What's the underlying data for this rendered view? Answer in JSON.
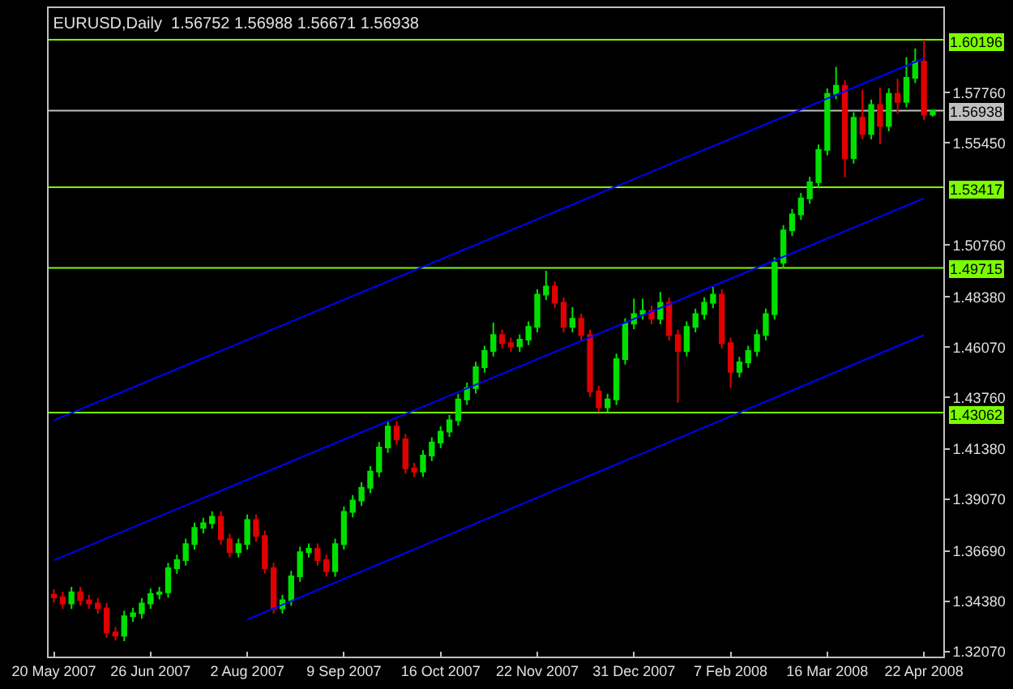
{
  "chart_data": {
    "type": "candlestick",
    "title": "EURUSD,Daily  1.56752 1.56988 1.56671 1.56938",
    "categories": [
      "20 May 2007",
      null,
      null,
      null,
      null,
      null,
      null,
      null,
      null,
      null,
      null,
      "26 Jun 2007",
      null,
      null,
      null,
      null,
      null,
      null,
      null,
      null,
      null,
      null,
      "2 Aug 2007",
      null,
      null,
      null,
      null,
      null,
      null,
      null,
      null,
      null,
      null,
      "9 Sep 2007",
      null,
      null,
      null,
      null,
      null,
      null,
      null,
      null,
      null,
      null,
      "16 Oct 2007",
      null,
      null,
      null,
      null,
      null,
      null,
      null,
      null,
      null,
      null,
      "22 Nov 2007",
      null,
      null,
      null,
      null,
      null,
      null,
      null,
      null,
      null,
      null,
      "31 Dec 2007",
      null,
      null,
      null,
      null,
      null,
      null,
      null,
      null,
      null,
      null,
      "7 Feb 2008",
      null,
      null,
      null,
      null,
      null,
      null,
      null,
      null,
      null,
      null,
      "16 Mar 2008",
      null,
      null,
      null,
      null,
      null,
      null,
      null,
      null,
      null,
      null,
      "22 Apr 2008",
      null
    ],
    "ohlc": [
      [
        1.347,
        1.3495,
        1.3433,
        1.3458
      ],
      [
        1.3458,
        1.3483,
        1.3404,
        1.3429
      ],
      [
        1.3429,
        1.3505,
        1.3404,
        1.348
      ],
      [
        1.348,
        1.3505,
        1.3419,
        1.3444
      ],
      [
        1.3444,
        1.3469,
        1.3404,
        1.3429
      ],
      [
        1.3429,
        1.3454,
        1.3382,
        1.3407
      ],
      [
        1.3407,
        1.3432,
        1.3271,
        1.3296
      ],
      [
        1.3296,
        1.3321,
        1.3259,
        1.3281
      ],
      [
        1.3281,
        1.3395,
        1.3256,
        1.337
      ],
      [
        1.337,
        1.3409,
        1.3345,
        1.3384
      ],
      [
        1.3384,
        1.3454,
        1.3359,
        1.3429
      ],
      [
        1.3429,
        1.3498,
        1.3404,
        1.3473
      ],
      [
        1.3473,
        1.3505,
        1.3448,
        1.348
      ],
      [
        1.348,
        1.3616,
        1.3455,
        1.3591
      ],
      [
        1.3591,
        1.3653,
        1.3566,
        1.3628
      ],
      [
        1.3628,
        1.3727,
        1.3603,
        1.3702
      ],
      [
        1.3702,
        1.3801,
        1.3677,
        1.3776
      ],
      [
        1.3776,
        1.3823,
        1.3751,
        1.3798
      ],
      [
        1.3798,
        1.3853,
        1.3773,
        1.3828
      ],
      [
        1.3828,
        1.3853,
        1.3699,
        1.3724
      ],
      [
        1.3724,
        1.3749,
        1.364,
        1.3665
      ],
      [
        1.3665,
        1.3727,
        1.364,
        1.3702
      ],
      [
        1.3702,
        1.3838,
        1.3677,
        1.3813
      ],
      [
        1.3813,
        1.3838,
        1.3714,
        1.3739
      ],
      [
        1.3739,
        1.3764,
        1.3566,
        1.3591
      ],
      [
        1.3591,
        1.3616,
        1.3382,
        1.3407
      ],
      [
        1.3407,
        1.3469,
        1.3382,
        1.3444
      ],
      [
        1.3444,
        1.3579,
        1.3419,
        1.3554
      ],
      [
        1.3554,
        1.369,
        1.3529,
        1.3665
      ],
      [
        1.3665,
        1.3705,
        1.364,
        1.368
      ],
      [
        1.368,
        1.3705,
        1.3603,
        1.3628
      ],
      [
        1.3628,
        1.3653,
        1.3552,
        1.3577
      ],
      [
        1.3577,
        1.3727,
        1.3552,
        1.3702
      ],
      [
        1.3702,
        1.3875,
        1.3677,
        1.385
      ],
      [
        1.385,
        1.3927,
        1.3825,
        1.3902
      ],
      [
        1.3902,
        1.3986,
        1.3877,
        1.3961
      ],
      [
        1.3961,
        1.406,
        1.3936,
        1.4035
      ],
      [
        1.4035,
        1.4171,
        1.401,
        1.4146
      ],
      [
        1.4146,
        1.4267,
        1.4121,
        1.4242
      ],
      [
        1.4242,
        1.4267,
        1.4158,
        1.4183
      ],
      [
        1.4183,
        1.4208,
        1.4025,
        1.405
      ],
      [
        1.405,
        1.4075,
        1.401,
        1.4035
      ],
      [
        1.4035,
        1.4134,
        1.401,
        1.4109
      ],
      [
        1.4109,
        1.4193,
        1.4084,
        1.4168
      ],
      [
        1.4168,
        1.4244,
        1.4143,
        1.4219
      ],
      [
        1.4219,
        1.4296,
        1.4194,
        1.4271
      ],
      [
        1.4271,
        1.4392,
        1.4246,
        1.4367
      ],
      [
        1.4367,
        1.4444,
        1.4342,
        1.4419
      ],
      [
        1.4419,
        1.454,
        1.4394,
        1.4515
      ],
      [
        1.4515,
        1.4614,
        1.449,
        1.4589
      ],
      [
        1.4589,
        1.472,
        1.4564,
        1.4663
      ],
      [
        1.4663,
        1.4688,
        1.4601,
        1.4626
      ],
      [
        1.4626,
        1.4651,
        1.4586,
        1.4611
      ],
      [
        1.4611,
        1.4666,
        1.4586,
        1.4641
      ],
      [
        1.4641,
        1.4725,
        1.4616,
        1.47
      ],
      [
        1.47,
        1.4873,
        1.4675,
        1.4848
      ],
      [
        1.4848,
        1.4958,
        1.4823,
        1.4885
      ],
      [
        1.4885,
        1.491,
        1.4786,
        1.4811
      ],
      [
        1.4811,
        1.4836,
        1.4675,
        1.47
      ],
      [
        1.47,
        1.479,
        1.4675,
        1.4737
      ],
      [
        1.4737,
        1.4762,
        1.4638,
        1.4663
      ],
      [
        1.4663,
        1.4688,
        1.4379,
        1.4404
      ],
      [
        1.4404,
        1.4429,
        1.4308,
        1.433
      ],
      [
        1.433,
        1.4392,
        1.431,
        1.4367
      ],
      [
        1.4367,
        1.4577,
        1.4342,
        1.4552
      ],
      [
        1.4552,
        1.474,
        1.4527,
        1.4715
      ],
      [
        1.4715,
        1.483,
        1.469,
        1.4759
      ],
      [
        1.4759,
        1.483,
        1.4734,
        1.4774
      ],
      [
        1.4774,
        1.4799,
        1.4712,
        1.4737
      ],
      [
        1.4737,
        1.486,
        1.4712,
        1.4811
      ],
      [
        1.4811,
        1.4836,
        1.4638,
        1.4663
      ],
      [
        1.4663,
        1.4688,
        1.4352,
        1.4589
      ],
      [
        1.4589,
        1.4725,
        1.4564,
        1.47
      ],
      [
        1.47,
        1.4784,
        1.4675,
        1.4759
      ],
      [
        1.4759,
        1.4836,
        1.4734,
        1.4811
      ],
      [
        1.4811,
        1.4885,
        1.4786,
        1.4848
      ],
      [
        1.4848,
        1.4873,
        1.4601,
        1.4626
      ],
      [
        1.4626,
        1.4651,
        1.442,
        1.4493
      ],
      [
        1.4493,
        1.4562,
        1.4468,
        1.4537
      ],
      [
        1.4537,
        1.4614,
        1.4512,
        1.4589
      ],
      [
        1.4589,
        1.4688,
        1.4564,
        1.4663
      ],
      [
        1.4663,
        1.4784,
        1.4638,
        1.4759
      ],
      [
        1.4759,
        1.502,
        1.4734,
        1.4995
      ],
      [
        1.4995,
        1.5168,
        1.497,
        1.5143
      ],
      [
        1.5143,
        1.5242,
        1.5118,
        1.5217
      ],
      [
        1.5217,
        1.5316,
        1.5192,
        1.5291
      ],
      [
        1.5291,
        1.539,
        1.5266,
        1.5365
      ],
      [
        1.5365,
        1.5538,
        1.534,
        1.5513
      ],
      [
        1.5513,
        1.5796,
        1.5488,
        1.5771
      ],
      [
        1.5771,
        1.5895,
        1.5746,
        1.5808
      ],
      [
        1.5808,
        1.5833,
        1.5387,
        1.5476
      ],
      [
        1.5476,
        1.5686,
        1.5451,
        1.5661
      ],
      [
        1.5661,
        1.579,
        1.5562,
        1.5587
      ],
      [
        1.5587,
        1.5745,
        1.5562,
        1.572
      ],
      [
        1.572,
        1.58,
        1.554,
        1.5624
      ],
      [
        1.5624,
        1.5796,
        1.5599,
        1.5771
      ],
      [
        1.5771,
        1.584,
        1.568,
        1.5734
      ],
      [
        1.5734,
        1.594,
        1.5709,
        1.5845
      ],
      [
        1.5845,
        1.598,
        1.582,
        1.5919
      ],
      [
        1.5919,
        1.6019,
        1.565,
        1.5675
      ],
      [
        1.56752,
        1.56988,
        1.56671,
        1.56938
      ]
    ],
    "series": [
      {
        "type": "line",
        "color": "#0000ff",
        "x": [
          "20 May 2007",
          "22 Apr 2008"
        ],
        "values": [
          1.4271,
          1.5934
        ]
      },
      {
        "type": "line",
        "color": "#0000ff",
        "x": [
          "20 May 2007",
          "22 Apr 2008"
        ],
        "values": [
          1.3628,
          1.5291
        ]
      },
      {
        "type": "line",
        "color": "#0000ff",
        "x": [
          "2 Aug 2007",
          "22 Apr 2008"
        ],
        "values": [
          1.3355,
          1.4663
        ]
      }
    ],
    "ylim": [
      1.3185,
      1.6165
    ],
    "yticks": [
      {
        "value": 1.3207,
        "label": "1.32070"
      },
      {
        "value": 1.3438,
        "label": "1.34380"
      },
      {
        "value": 1.3669,
        "label": "1.36690"
      },
      {
        "value": 1.3907,
        "label": "1.39070"
      },
      {
        "value": 1.4138,
        "label": "1.41380"
      },
      {
        "value": 1.4376,
        "label": "1.43760"
      },
      {
        "value": 1.4607,
        "label": "1.46070"
      },
      {
        "value": 1.4838,
        "label": "1.48380"
      },
      {
        "value": 1.5076,
        "label": "1.50760"
      },
      {
        "value": 1.5545,
        "label": "1.55450"
      },
      {
        "value": 1.5776,
        "label": "1.57760"
      }
    ],
    "ref_lines": [
      {
        "axis": "y",
        "value": 1.60196,
        "label": "1.60196",
        "color": "#7cfc00"
      },
      {
        "axis": "y",
        "value": 1.56938,
        "label": "1.56938",
        "color": "#c0c0c0"
      },
      {
        "axis": "y",
        "value": 1.53417,
        "label": "1.53417",
        "color": "#7cfc00"
      },
      {
        "axis": "y",
        "value": 1.49715,
        "label": "1.49715",
        "color": "#7cfc00"
      },
      {
        "axis": "y",
        "value": 1.43062,
        "label": "1.43062",
        "color": "#7cfc00"
      }
    ],
    "grid": false
  }
}
